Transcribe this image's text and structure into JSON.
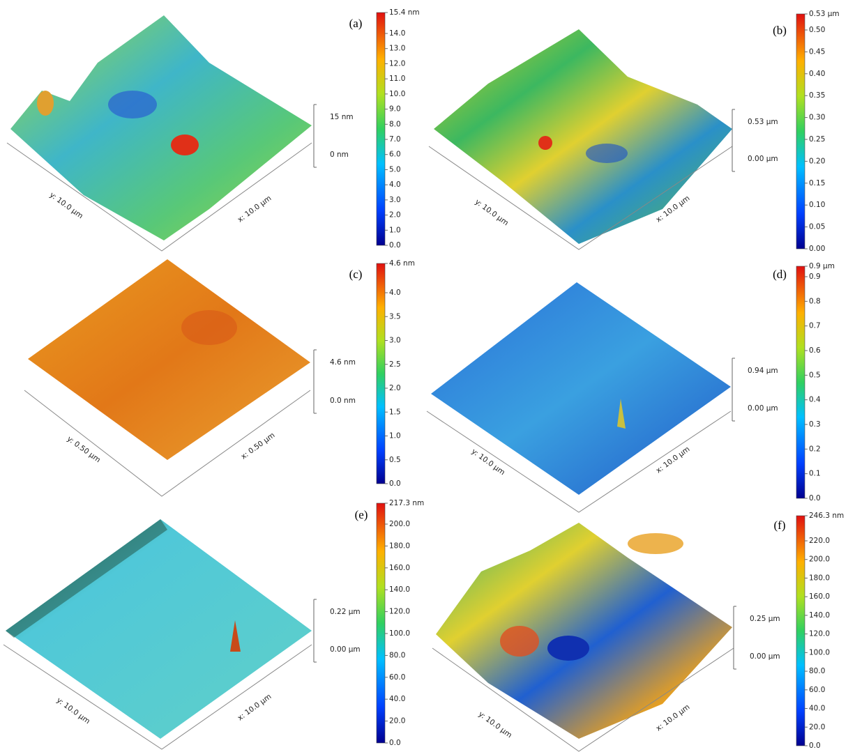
{
  "panels": [
    {
      "label": "(a)",
      "colorbar": {
        "max_label": "15.4 nm",
        "ticks": [
          "0.0",
          "1.0",
          "2.0",
          "3.0",
          "4.0",
          "5.0",
          "6.0",
          "7.0",
          "8.0",
          "9.0",
          "10.0",
          "11.0",
          "12.0",
          "13.0",
          "14.0"
        ]
      },
      "z_scale": {
        "top": "15 nm",
        "bottom": "0 nm"
      },
      "y_axis": "y: 10.0 μm",
      "x_axis": "x: 10.0 μm"
    },
    {
      "label": "(b)",
      "colorbar": {
        "max_label": "0.53 μm",
        "ticks": [
          "0.00",
          "0.05",
          "0.10",
          "0.15",
          "0.20",
          "0.25",
          "0.30",
          "0.35",
          "0.40",
          "0.45",
          "0.50"
        ]
      },
      "z_scale": {
        "top": "0.53 μm",
        "bottom": "0.00 μm"
      },
      "y_axis": "y: 10.0 μm",
      "x_axis": "x: 10.0 μm"
    },
    {
      "label": "(c)",
      "colorbar": {
        "max_label": "4.6 nm",
        "ticks": [
          "0.0",
          "0.5",
          "1.0",
          "1.5",
          "2.0",
          "2.5",
          "3.0",
          "3.5",
          "4.0"
        ]
      },
      "z_scale": {
        "top": "4.6 nm",
        "bottom": "0.0 nm"
      },
      "y_axis": "y: 0.50 μm",
      "x_axis": "x: 0.50 μm"
    },
    {
      "label": "(d)",
      "colorbar": {
        "max_label": "0.9 μm",
        "ticks": [
          "0.0",
          "0.1",
          "0.2",
          "0.3",
          "0.4",
          "0.5",
          "0.6",
          "0.7",
          "0.8",
          "0.9"
        ]
      },
      "z_scale": {
        "top": "0.94 μm",
        "bottom": "0.00 μm"
      },
      "y_axis": "y: 10.0 μm",
      "x_axis": "x: 10.0 μm"
    },
    {
      "label": "(e)",
      "colorbar": {
        "max_label": "217.3 nm",
        "ticks": [
          "0.0",
          "20.0",
          "40.0",
          "60.0",
          "80.0",
          "100.0",
          "120.0",
          "140.0",
          "160.0",
          "180.0",
          "200.0"
        ]
      },
      "z_scale": {
        "top": "0.22 μm",
        "bottom": "0.00 μm"
      },
      "y_axis": "y: 10.0 μm",
      "x_axis": "x: 10.0 μm"
    },
    {
      "label": "(f)",
      "colorbar": {
        "max_label": "246.3 nm",
        "ticks": [
          "0.0",
          "20.0",
          "40.0",
          "60.0",
          "80.0",
          "100.0",
          "120.0",
          "140.0",
          "160.0",
          "180.0",
          "200.0",
          "220.0"
        ]
      },
      "z_scale": {
        "top": "0.25 μm",
        "bottom": "0.00 μm"
      },
      "y_axis": "y: 10.0 μm",
      "x_axis": "x: 10.0 μm"
    }
  ]
}
